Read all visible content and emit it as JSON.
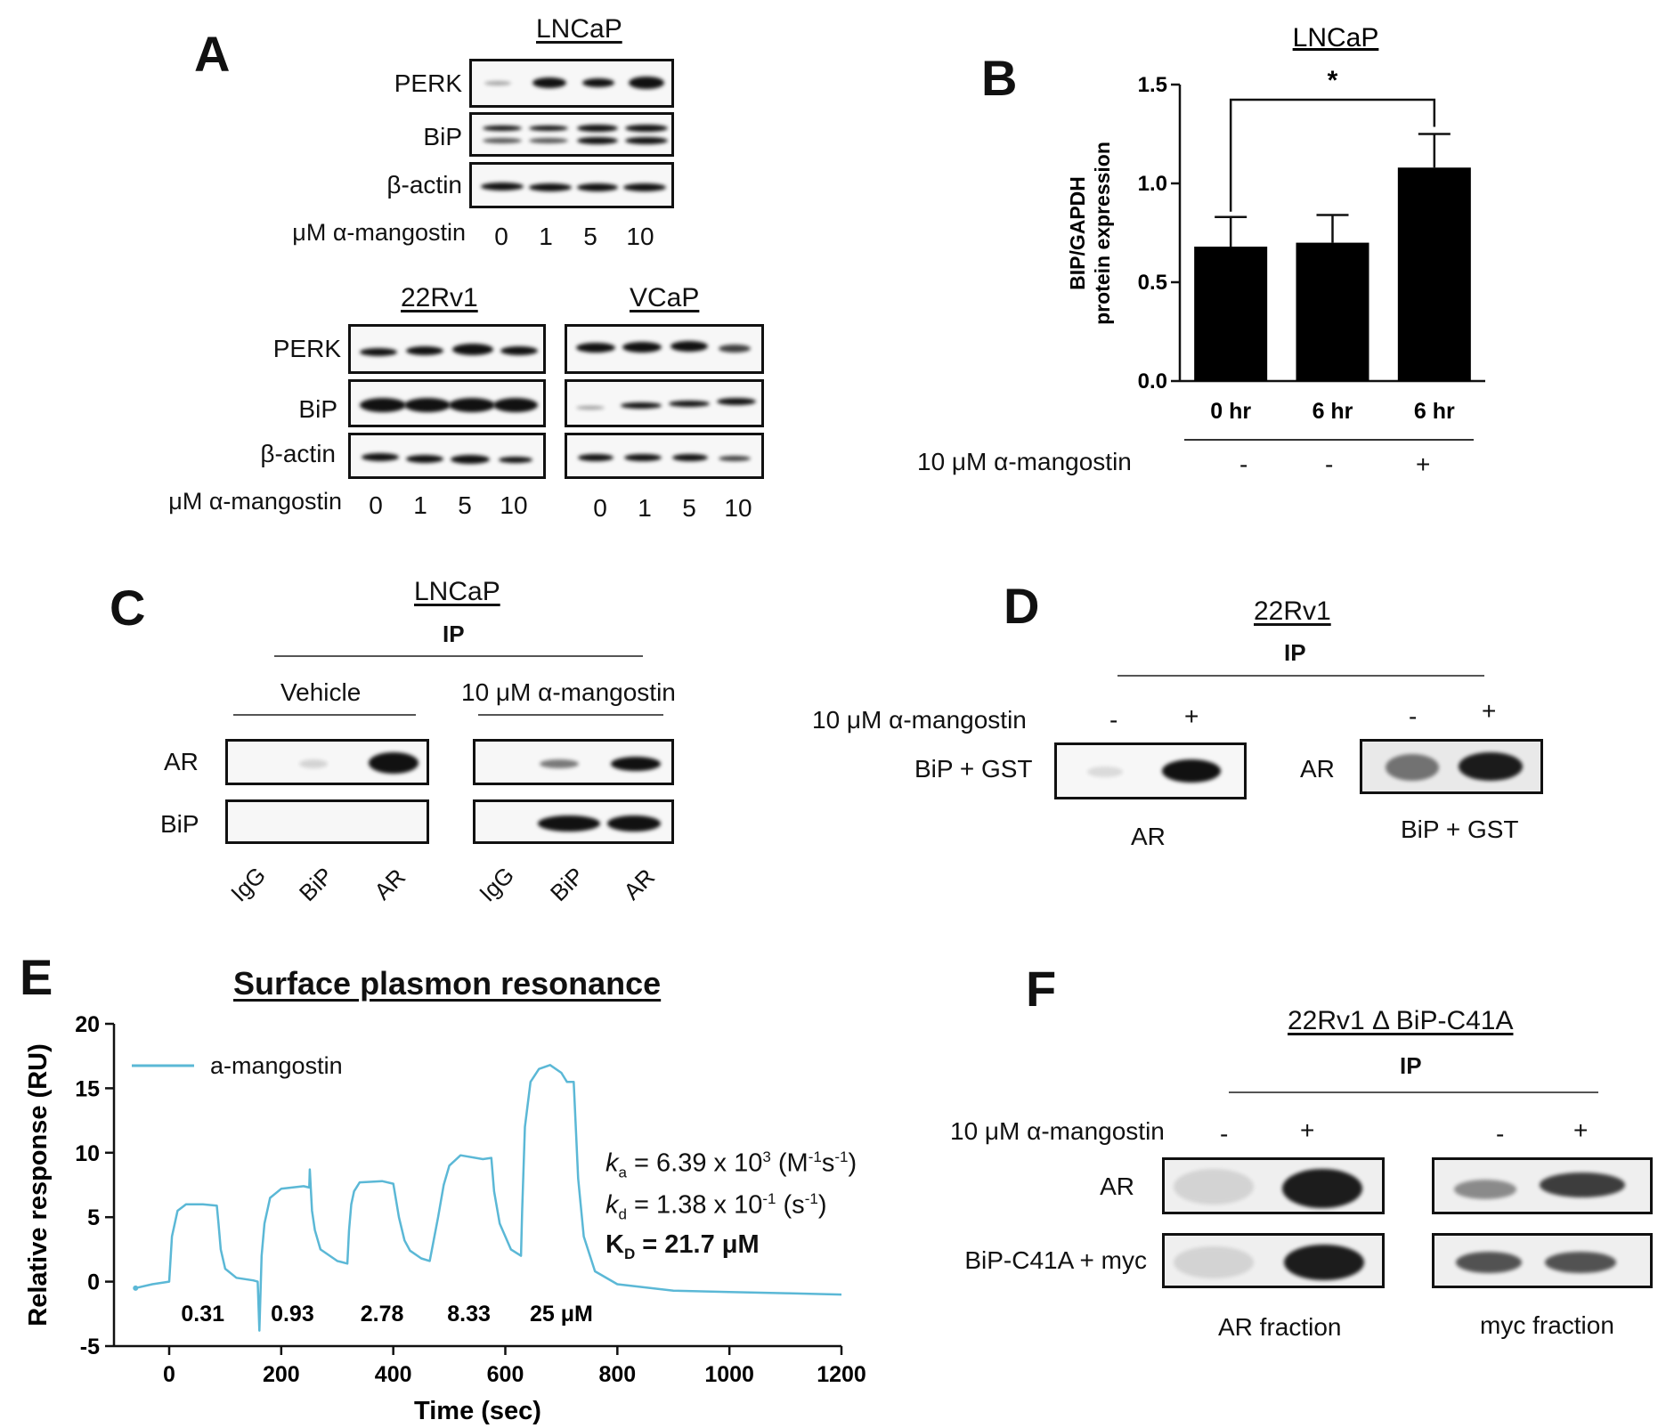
{
  "panelA": {
    "label": "A",
    "lncap_title": "LNCaP",
    "rows": [
      "PERK",
      "BiP",
      "β-actin"
    ],
    "dose_label": "μM α-mangostin",
    "doses": [
      "0",
      "1",
      "5",
      "10"
    ],
    "rv1_title": "22Rv1",
    "vcap_title": "VCaP"
  },
  "panelB": {
    "label": "B",
    "title": "LNCaP",
    "treatment_label": "10 μM  α-mangostin",
    "treatment_signs": [
      "-",
      "-",
      "+"
    ],
    "significance": "*"
  },
  "chart_data": [
    {
      "type": "bar",
      "panel": "B",
      "title": "LNCaP",
      "categories": [
        "0 hr",
        "6 hr",
        "6 hr"
      ],
      "values": [
        0.68,
        0.7,
        1.08
      ],
      "error": [
        0.15,
        0.14,
        0.17
      ],
      "ylabel": "BIP/GAPDH protein expression",
      "ylim": [
        0,
        1.5
      ],
      "yticks": [
        "0.0",
        "0.5",
        "1.0",
        "1.5"
      ],
      "bar_color": "#000000"
    },
    {
      "type": "line",
      "panel": "E",
      "title": "Surface plasmon resonance",
      "xlabel": "Time (sec)",
      "ylabel": "Relative response (RU)",
      "xlim": [
        -60,
        1200
      ],
      "ylim": [
        -5,
        20
      ],
      "xticks": [
        "0",
        "200",
        "400",
        "600",
        "800",
        "1000",
        "1200"
      ],
      "yticks": [
        "-5",
        "0",
        "5",
        "10",
        "15",
        "20"
      ],
      "series": [
        {
          "name": "a-mangostin",
          "color": "#5bb8d6",
          "x": [
            -60,
            -30,
            0,
            5,
            15,
            30,
            60,
            85,
            88,
            92,
            100,
            120,
            150,
            158,
            161,
            165,
            170,
            180,
            200,
            240,
            250,
            251,
            255,
            260,
            270,
            300,
            318,
            321,
            325,
            330,
            340,
            380,
            400,
            410,
            420,
            430,
            450,
            465,
            480,
            490,
            500,
            520,
            560,
            575,
            580,
            590,
            610,
            628,
            630,
            635,
            645,
            660,
            680,
            700,
            710,
            722,
            730,
            740,
            760,
            800,
            900,
            1000,
            1100,
            1200
          ],
          "y": [
            -0.5,
            -0.2,
            0,
            3.5,
            5.5,
            6.0,
            6.0,
            5.9,
            4.5,
            2.5,
            1.0,
            0.3,
            0.1,
            0.0,
            -3.8,
            2.0,
            4.5,
            6.5,
            7.2,
            7.4,
            7.3,
            8.7,
            5.5,
            4.0,
            2.5,
            1.6,
            1.4,
            4.0,
            6.0,
            7.0,
            7.7,
            7.8,
            7.6,
            5.0,
            3.2,
            2.4,
            1.8,
            1.6,
            5.0,
            7.5,
            9.0,
            9.8,
            9.5,
            9.6,
            7.0,
            4.5,
            2.5,
            2.0,
            5.5,
            12.0,
            15.5,
            16.5,
            16.8,
            16.2,
            15.5,
            15.5,
            8.0,
            3.5,
            0.8,
            -0.2,
            -0.7,
            -0.8,
            -0.9,
            -1.0
          ]
        }
      ],
      "injection_labels": [
        "0.31",
        "0.93",
        "2.78",
        "8.33",
        "25 μM"
      ]
    }
  ],
  "panelC": {
    "label": "C",
    "title": "LNCaP",
    "ip": "IP",
    "groups": [
      "Vehicle",
      "10 μM  α-mangostin"
    ],
    "rows": [
      "AR",
      "BiP"
    ],
    "lanes": [
      "IgG",
      "BiP",
      "AR"
    ]
  },
  "panelD": {
    "label": "D",
    "title": "22Rv1",
    "ip": "IP",
    "treatment_label": "10 μM  α-mangostin",
    "signs": [
      "-",
      "+"
    ],
    "left_row": "BiP + GST",
    "left_caption": "AR",
    "right_row": "AR",
    "right_caption": "BiP + GST"
  },
  "panelE": {
    "label": "E",
    "title": "Surface plasmon resonance",
    "legend": "a-mangostin",
    "ka_sym": "k",
    "ka_sub": "a",
    "ka_text": " = 6.39 x 10",
    "ka_exp": "3",
    "ka_unit_a": " (M",
    "ka_unit_sup1": "-1",
    "ka_unit_b": "s",
    "ka_unit_sup2": "-1",
    "ka_unit_c": ")",
    "kd_sym": "k",
    "kd_sub": "d",
    "kd_text": " = 1.38 x 10",
    "kd_exp": "-1",
    "kd_unit_a": " (s",
    "kd_unit_sup": "-1",
    "kd_unit_c": ")",
    "KD_sym": "K",
    "KD_sub": "D",
    "KD_text": " = 21.7 μM"
  },
  "panelF": {
    "label": "F",
    "title": "22Rv1  Δ BiP-C41A",
    "ip": "IP",
    "treatment_label": "10 μM  α-mangostin",
    "signs": [
      "-",
      "+"
    ],
    "rows": [
      "AR",
      "BiP-C41A + myc"
    ],
    "captions": [
      "AR fraction",
      "myc fraction"
    ]
  }
}
